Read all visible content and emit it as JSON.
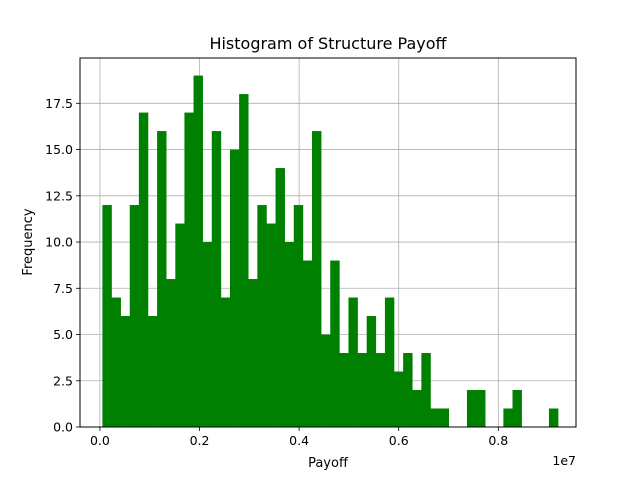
{
  "chart_data": {
    "type": "bar",
    "title": "Histogram of Structure Payoff",
    "xlabel": "Payoff",
    "ylabel": "Frequency",
    "x_offset_text": "1e7",
    "xlim": [
      -0.04,
      0.956
    ],
    "ylim": [
      0,
      19.95
    ],
    "x_ticks": [
      0.0,
      0.2,
      0.4,
      0.6,
      0.8
    ],
    "x_tick_labels": [
      "0.0",
      "0.2",
      "0.4",
      "0.6",
      "0.8"
    ],
    "y_ticks": [
      0,
      2.5,
      5,
      7.5,
      10,
      12.5,
      15,
      17.5
    ],
    "y_tick_labels": [
      "0.0",
      "2.5",
      "5.0",
      "7.5",
      "10.0",
      "12.5",
      "15.0",
      "17.5"
    ],
    "bin_start": 0.005,
    "bin_width": 0.0183,
    "values": [
      12,
      7,
      6,
      12,
      17,
      6,
      16,
      8,
      11,
      17,
      19,
      10,
      16,
      7,
      15,
      18,
      8,
      12,
      11,
      14,
      10,
      12,
      9,
      16,
      5,
      9,
      4,
      7,
      4,
      6,
      4,
      7,
      3,
      4,
      2,
      4,
      1,
      1,
      0,
      0,
      2,
      2,
      0,
      0,
      1,
      2,
      0,
      0,
      0,
      1
    ],
    "bar_color": "#008000",
    "grid": true
  }
}
